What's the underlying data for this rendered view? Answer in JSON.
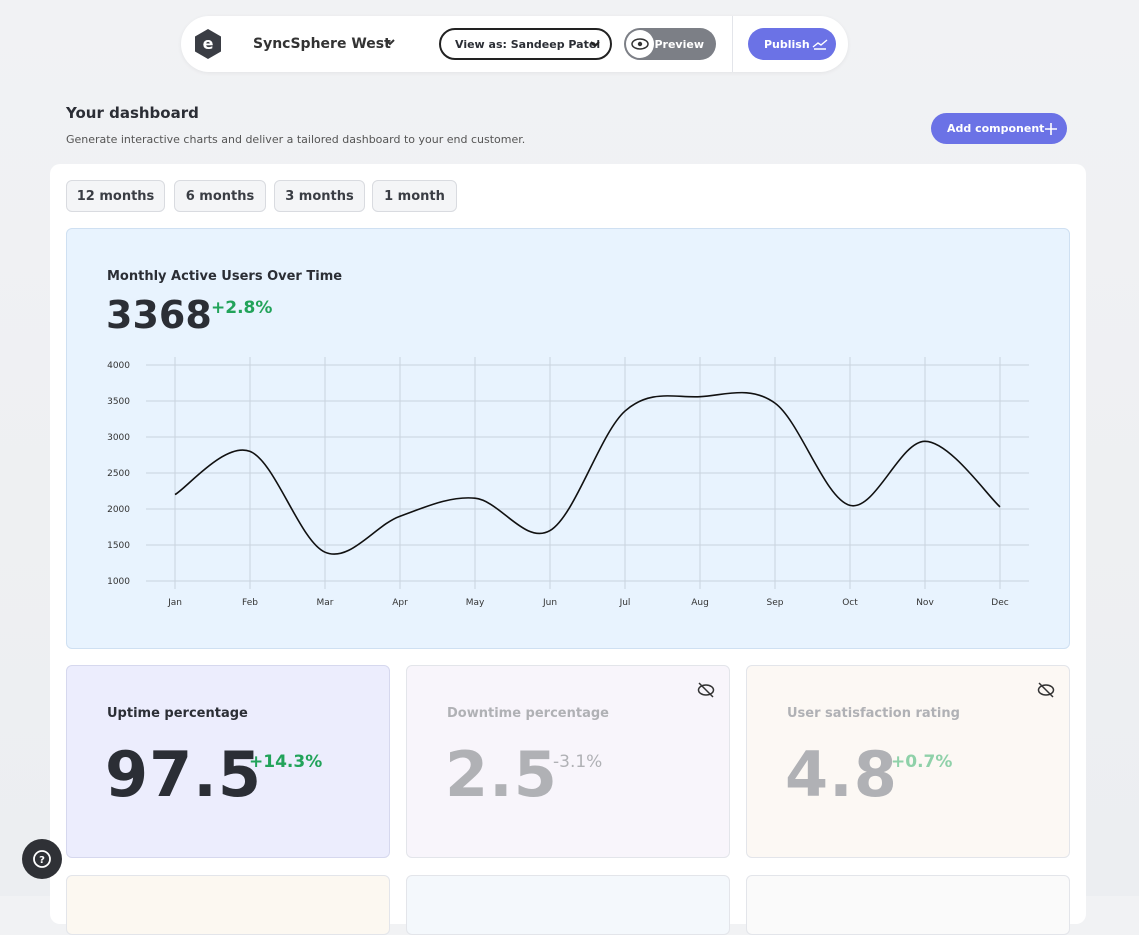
{
  "topbar": {
    "workspace": "SyncSphere West",
    "view_as": "View as: Sandeep Patel",
    "preview": "Preview",
    "publish": "Publish"
  },
  "header": {
    "title": "Your dashboard",
    "subtitle": "Generate interactive charts and deliver a tailored dashboard to your end customer.",
    "add_button": "Add component"
  },
  "filters": [
    "12 months",
    "6 months",
    "3 months",
    "1 month"
  ],
  "chart_card": {
    "value": 3368,
    "change": "+2.8%"
  },
  "chart_data": {
    "type": "line",
    "title": "Monthly Active Users Over Time",
    "categories": [
      "Jan",
      "Feb",
      "Mar",
      "Apr",
      "May",
      "Jun",
      "Jul",
      "Aug",
      "Sep",
      "Oct",
      "Nov",
      "Dec"
    ],
    "values": [
      2200,
      2800,
      1400,
      1900,
      2150,
      1700,
      3360,
      3560,
      3470,
      2050,
      2940,
      2030
    ],
    "color": "#111111",
    "ylim": [
      1000,
      4000
    ],
    "yticks": [
      1000,
      1500,
      2000,
      2500,
      3000,
      3500,
      4000
    ],
    "grid": true
  },
  "stats": [
    {
      "title": "Uptime percentage",
      "value": 97.5,
      "change": "+14.3%"
    },
    {
      "title": "Downtime percentage",
      "value": 2.5,
      "change": "-3.1%"
    },
    {
      "title": "User satisfaction rating",
      "value": 4.8,
      "change": "+0.7%"
    }
  ]
}
